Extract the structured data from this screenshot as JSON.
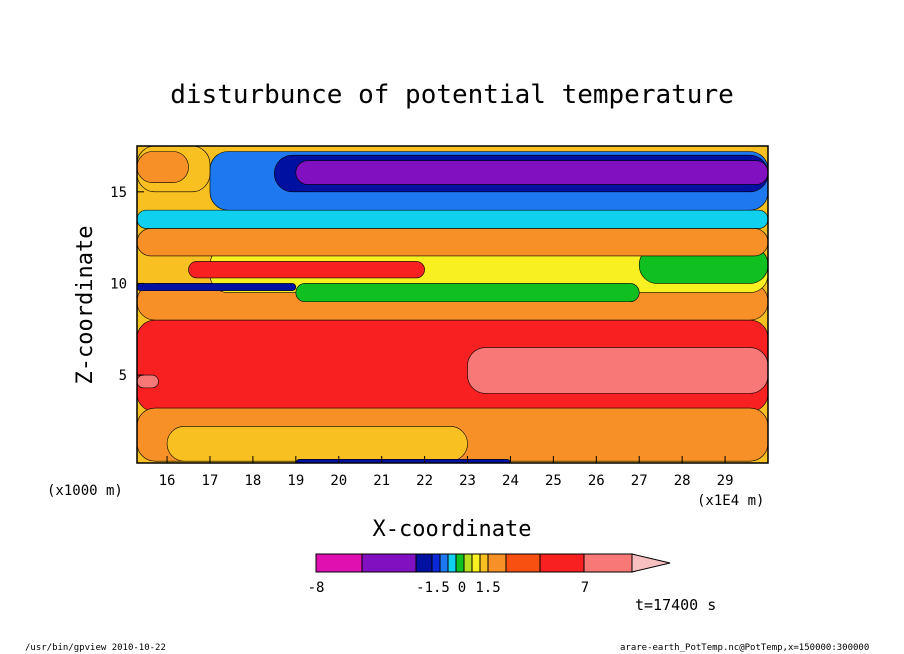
{
  "chart_data": {
    "type": "heatmap",
    "title": "disturbunce of potential temperature",
    "xlabel": "X-coordinate",
    "ylabel": "Z-coordinate",
    "x_unit_left": "(x1000 m)",
    "x_unit_right": "(x1E4 m)",
    "x_ticks": [
      "16",
      "17",
      "18",
      "19",
      "20",
      "21",
      "22",
      "23",
      "24",
      "25",
      "26",
      "27",
      "28",
      "29"
    ],
    "y_ticks": [
      "5",
      "10",
      "15"
    ],
    "xlim": [
      15.3,
      30
    ],
    "ylim": [
      0.2,
      17.5
    ],
    "colorbar": {
      "colors": [
        "#e010b0",
        "#8010c0",
        "#0010a0",
        "#0a28d8",
        "#1e78f0",
        "#10d0f0",
        "#10c020",
        "#b8e020",
        "#f8f020",
        "#f8c020",
        "#f89028",
        "#f85010",
        "#f82020",
        "#f87878",
        "#f8c0c0"
      ],
      "tick_labels": [
        "-8",
        "-1.5",
        "0",
        "1.5",
        "7"
      ]
    },
    "regions": [
      {
        "color": "#f82020",
        "x": [
          15.3,
          30
        ],
        "z": [
          3,
          8
        ]
      },
      {
        "color": "#f87878",
        "x": [
          23,
          30
        ],
        "z": [
          4,
          6.5
        ]
      },
      {
        "color": "#f87878",
        "x": [
          15.3,
          15.8
        ],
        "z": [
          4.3,
          5
        ]
      },
      {
        "color": "#f89028",
        "x": [
          15.3,
          30
        ],
        "z": [
          0.3,
          3.2
        ]
      },
      {
        "color": "#f8c020",
        "x": [
          16,
          23
        ],
        "z": [
          0.3,
          2.2
        ]
      },
      {
        "color": "#f89028",
        "x": [
          15.3,
          30
        ],
        "z": [
          8,
          10
        ]
      },
      {
        "color": "#f8f020",
        "x": [
          17,
          30
        ],
        "z": [
          9.5,
          12
        ]
      },
      {
        "color": "#10c020",
        "x": [
          19,
          27
        ],
        "z": [
          9,
          10
        ]
      },
      {
        "color": "#10c020",
        "x": [
          27,
          30
        ],
        "z": [
          10,
          12
        ]
      },
      {
        "color": "#f82020",
        "x": [
          16.5,
          22
        ],
        "z": [
          10.3,
          11.2
        ]
      },
      {
        "color": "#f89028",
        "x": [
          15.3,
          30
        ],
        "z": [
          11.5,
          13
        ]
      },
      {
        "color": "#10d0f0",
        "x": [
          15.3,
          30
        ],
        "z": [
          13,
          14
        ]
      },
      {
        "color": "#1e78f0",
        "x": [
          17,
          30
        ],
        "z": [
          14,
          17.2
        ]
      },
      {
        "color": "#0010a0",
        "x": [
          18.5,
          30
        ],
        "z": [
          15,
          17
        ]
      },
      {
        "color": "#8010c0",
        "x": [
          19,
          30
        ],
        "z": [
          15.4,
          16.7
        ]
      },
      {
        "color": "#f8c020",
        "x": [
          15.3,
          17
        ],
        "z": [
          15,
          17.5
        ]
      },
      {
        "color": "#f89028",
        "x": [
          15.3,
          16.5
        ],
        "z": [
          15.5,
          17.2
        ]
      },
      {
        "color": "#0010a0",
        "x": [
          15.3,
          19
        ],
        "z": [
          9.6,
          10
        ]
      },
      {
        "color": "#0010a0",
        "x": [
          19,
          24
        ],
        "z": [
          0,
          0.4
        ]
      }
    ]
  },
  "annotation": {
    "time": "t=17400 s"
  },
  "footer": {
    "left": "/usr/bin/gpview  2010-10-22",
    "right": "arare-earth_PotTemp.nc@PotTemp,x=150000:300000"
  }
}
